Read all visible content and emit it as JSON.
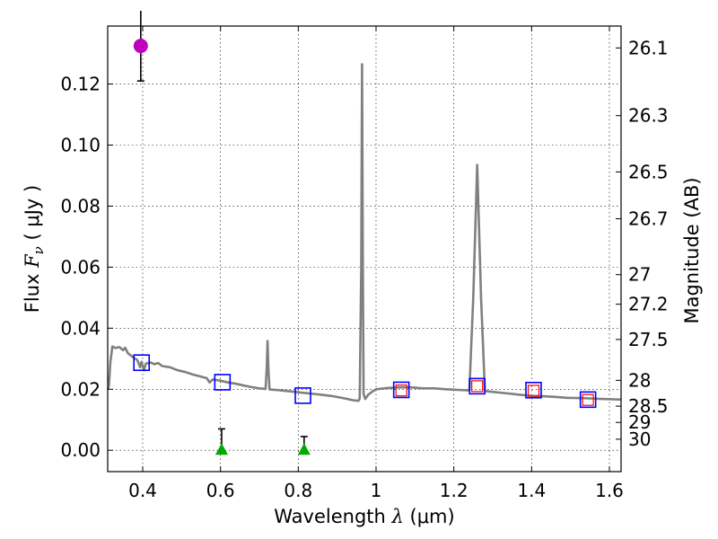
{
  "chart_data": {
    "type": "scatter",
    "xlabel": {
      "prefix": "Wavelength  ",
      "symbol": "λ",
      "suffix": " (μm)"
    },
    "ylabel": {
      "prefix": "Flux  ",
      "symbol": "F",
      "subscript": "ν",
      "suffix": "  ( μJy )"
    },
    "y2label": "Magnitude (AB)",
    "xlim": [
      0.31,
      1.63
    ],
    "ylim": [
      -0.007,
      0.139
    ],
    "grid": true,
    "x_ticks": [
      0.4,
      0.6,
      0.8,
      1.0,
      1.2,
      1.4,
      1.6
    ],
    "x_tick_labels": [
      "0.4",
      "0.6",
      "0.8",
      "1",
      "1.2",
      "1.4",
      "1.6"
    ],
    "y_ticks": [
      0.0,
      0.02,
      0.04,
      0.06,
      0.08,
      0.1,
      0.12
    ],
    "y_tick_labels": [
      "0.00",
      "0.02",
      "0.04",
      "0.06",
      "0.08",
      "0.10",
      "0.12"
    ],
    "mag_ticks": [
      26.1,
      26.3,
      26.5,
      26.7,
      27,
      27.2,
      27.5,
      28,
      28.5,
      29,
      30
    ],
    "mag_tick_labels": [
      "26.1",
      "26.3",
      "26.5",
      "26.7",
      "27",
      "27.2",
      "27.5",
      "28",
      "28.5",
      "29",
      "30"
    ],
    "colors": {
      "spectrum": "#808080",
      "detection": "#bf00bf",
      "upper_limit": "#00aa00",
      "model_square": "#0000ff",
      "observed_square": "#ff0000",
      "errorbar": "#000000"
    },
    "series": [
      {
        "name": "model spectrum",
        "kind": "line",
        "points": [
          [
            0.31,
            0.02
          ],
          [
            0.313,
            0.021
          ],
          [
            0.317,
            0.029
          ],
          [
            0.322,
            0.034
          ],
          [
            0.33,
            0.0335
          ],
          [
            0.34,
            0.0338
          ],
          [
            0.35,
            0.0328
          ],
          [
            0.355,
            0.0336
          ],
          [
            0.362,
            0.0318
          ],
          [
            0.37,
            0.031
          ],
          [
            0.378,
            0.0302
          ],
          [
            0.386,
            0.0296
          ],
          [
            0.39,
            0.0283
          ],
          [
            0.393,
            0.0272
          ],
          [
            0.397,
            0.029
          ],
          [
            0.4,
            0.0276
          ],
          [
            0.403,
            0.0262
          ],
          [
            0.408,
            0.0284
          ],
          [
            0.42,
            0.0288
          ],
          [
            0.43,
            0.0282
          ],
          [
            0.44,
            0.0286
          ],
          [
            0.45,
            0.0276
          ],
          [
            0.47,
            0.0272
          ],
          [
            0.49,
            0.0262
          ],
          [
            0.51,
            0.0256
          ],
          [
            0.53,
            0.0248
          ],
          [
            0.55,
            0.0241
          ],
          [
            0.565,
            0.0236
          ],
          [
            0.572,
            0.0222
          ],
          [
            0.58,
            0.0232
          ],
          [
            0.6,
            0.0228
          ],
          [
            0.62,
            0.0222
          ],
          [
            0.64,
            0.0218
          ],
          [
            0.66,
            0.0212
          ],
          [
            0.68,
            0.0207
          ],
          [
            0.7,
            0.0203
          ],
          [
            0.716,
            0.0201
          ],
          [
            0.719,
            0.027
          ],
          [
            0.721,
            0.0358
          ],
          [
            0.723,
            0.027
          ],
          [
            0.726,
            0.0199
          ],
          [
            0.75,
            0.0197
          ],
          [
            0.78,
            0.0193
          ],
          [
            0.8,
            0.019
          ],
          [
            0.83,
            0.0186
          ],
          [
            0.86,
            0.0182
          ],
          [
            0.89,
            0.0177
          ],
          [
            0.92,
            0.017
          ],
          [
            0.94,
            0.0164
          ],
          [
            0.955,
            0.0162
          ],
          [
            0.958,
            0.017
          ],
          [
            0.962,
            0.06
          ],
          [
            0.964,
            0.1265
          ],
          [
            0.966,
            0.06
          ],
          [
            0.968,
            0.0185
          ],
          [
            0.972,
            0.0168
          ],
          [
            0.98,
            0.0182
          ],
          [
            0.99,
            0.0192
          ],
          [
            1.0,
            0.02
          ],
          [
            1.03,
            0.0204
          ],
          [
            1.06,
            0.0206
          ],
          [
            1.09,
            0.0206
          ],
          [
            1.12,
            0.0203
          ],
          [
            1.15,
            0.0203
          ],
          [
            1.18,
            0.02
          ],
          [
            1.21,
            0.0198
          ],
          [
            1.24,
            0.0196
          ],
          [
            1.25,
            0.05
          ],
          [
            1.26,
            0.0935
          ],
          [
            1.27,
            0.05
          ],
          [
            1.28,
            0.0194
          ],
          [
            1.31,
            0.019
          ],
          [
            1.34,
            0.0186
          ],
          [
            1.37,
            0.0182
          ],
          [
            1.4,
            0.0178
          ],
          [
            1.43,
            0.0177
          ],
          [
            1.46,
            0.0175
          ],
          [
            1.49,
            0.0172
          ],
          [
            1.52,
            0.0171
          ],
          [
            1.55,
            0.017
          ],
          [
            1.58,
            0.0168
          ],
          [
            1.61,
            0.0167
          ],
          [
            1.63,
            0.0166
          ]
        ]
      },
      {
        "name": "detection",
        "kind": "marker",
        "marker": "circle",
        "points": [
          {
            "x": 0.395,
            "y": 0.1325,
            "yerr": 0.0115
          }
        ]
      },
      {
        "name": "upper limits",
        "kind": "marker",
        "marker": "triangle",
        "points": [
          {
            "x": 0.603,
            "y": 0.0,
            "yerr_up": 0.007
          },
          {
            "x": 0.815,
            "y": 0.0,
            "yerr_up": 0.0045
          }
        ]
      },
      {
        "name": "model photometry",
        "kind": "marker",
        "marker": "square-open",
        "points": [
          {
            "x": 0.397,
            "y": 0.0287
          },
          {
            "x": 0.605,
            "y": 0.0223
          },
          {
            "x": 0.812,
            "y": 0.0179
          },
          {
            "x": 1.065,
            "y": 0.0198
          },
          {
            "x": 1.26,
            "y": 0.021
          },
          {
            "x": 1.405,
            "y": 0.0197
          },
          {
            "x": 1.545,
            "y": 0.0166
          }
        ]
      },
      {
        "name": "observed photometry",
        "kind": "marker",
        "marker": "square-open-small",
        "points": [
          {
            "x": 1.065,
            "y": 0.0196
          },
          {
            "x": 1.26,
            "y": 0.021
          },
          {
            "x": 1.405,
            "y": 0.0195
          },
          {
            "x": 1.545,
            "y": 0.0165
          }
        ]
      }
    ]
  }
}
